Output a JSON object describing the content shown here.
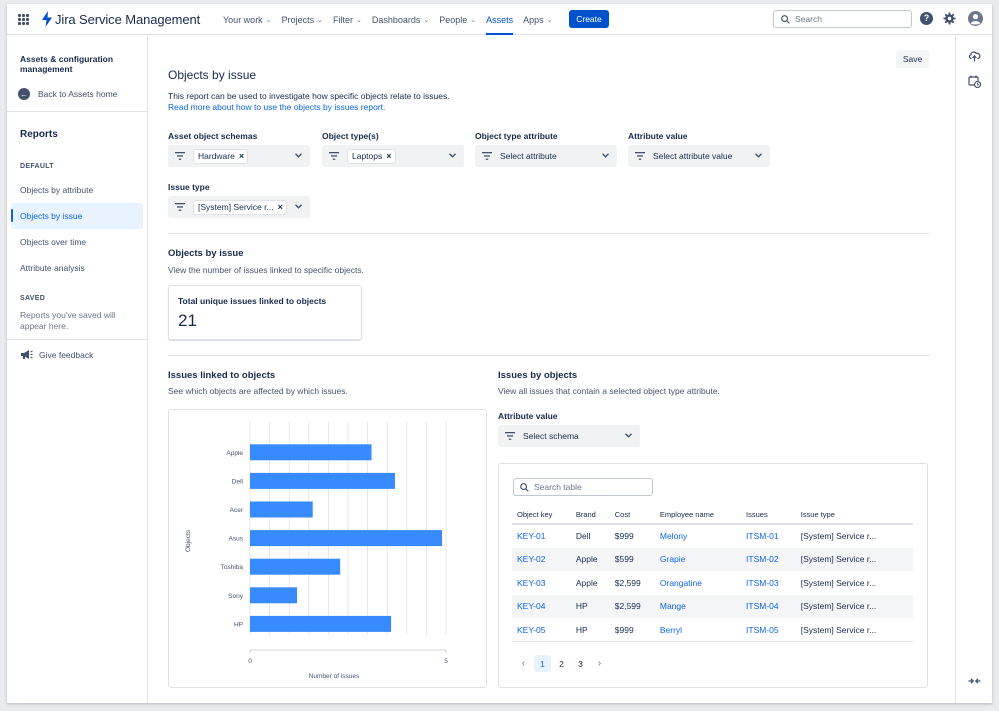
{
  "topbar": {
    "product_name": "Jira Service Management",
    "nav": [
      {
        "label": "Your work",
        "dropdown": true
      },
      {
        "label": "Projects",
        "dropdown": true
      },
      {
        "label": "Filter",
        "dropdown": true
      },
      {
        "label": "Dashboards",
        "dropdown": true
      },
      {
        "label": "People",
        "dropdown": true
      },
      {
        "label": "Assets",
        "dropdown": false,
        "active": true
      },
      {
        "label": "Apps",
        "dropdown": true
      }
    ],
    "create_label": "Create",
    "search_placeholder": "Search",
    "help_glyph": "?"
  },
  "sidebar": {
    "title": "Assets & configuration management",
    "back_label": "Back to Assets home",
    "section": "Reports",
    "default_header": "DEFAULT",
    "items": [
      "Objects by attribute",
      "Objects by issue",
      "Objects over time",
      "Attribute analysis"
    ],
    "selected_index": 1,
    "saved_header": "SAVED",
    "saved_note": "Reports you've saved will appear here.",
    "feedback_label": "Give feedback"
  },
  "main": {
    "save_label": "Save",
    "title": "Objects by issue",
    "description": "This report can be used to investigate how specific objects relate to issues.",
    "read_more": "Read more about how to use the objects by issues report.",
    "filters": {
      "schemas_label": "Asset object schemas",
      "schemas_value": "Hardware",
      "types_label": "Object type(s)",
      "types_value": "Laptops",
      "type_attr_label": "Object type attribute",
      "type_attr_placeholder": "Select attribute",
      "attr_value_label": "Attribute value",
      "attr_value_placeholder": "Select attribute value",
      "issue_type_label": "Issue type",
      "issue_type_value": "[System] Service r..."
    },
    "summary": {
      "title": "Objects by issue",
      "subtitle": "View the number of issues linked to specific objects.",
      "card_label": "Total unique issues linked to objects",
      "card_value": "21"
    },
    "linked": {
      "title": "Issues linked to objects",
      "subtitle": "See which objects are affected by which issues."
    },
    "by_objects": {
      "title": "Issues by objects",
      "subtitle": "View all issues that contain a selected object type attribute.",
      "attr_label": "Attribute value",
      "schema_placeholder": "Select schema",
      "table_search_placeholder": "Search table"
    }
  },
  "chart_data": {
    "type": "bar",
    "orientation": "horizontal",
    "categories": [
      "Apple",
      "Dell",
      "Acer",
      "Asus",
      "Toshiba",
      "Sony",
      "HP"
    ],
    "values": [
      3.1,
      3.7,
      1.6,
      4.9,
      2.3,
      1.2,
      3.6
    ],
    "xlabel": "Number of issues",
    "ylabel": "Objects",
    "xlim": [
      0,
      5
    ],
    "xticks": [
      "0",
      "5"
    ],
    "bar_color": "#388bff",
    "grid": true
  },
  "table": {
    "headers": [
      "Object key",
      "Brand",
      "Cost",
      "Employee name",
      "Issues",
      "Issue type"
    ],
    "rows": [
      [
        "KEY-01",
        "Dell",
        "$999",
        "Melony",
        "ITSM-01",
        "[System] Service r..."
      ],
      [
        "KEY-02",
        "Apple",
        "$599",
        "Grapie",
        "ITSM-02",
        "[System] Service r..."
      ],
      [
        "KEY-03",
        "Apple",
        "$2,599",
        "Orangatine",
        "ITSM-03",
        "[System] Service r..."
      ],
      [
        "KEY-04",
        "HP",
        "$2,599",
        "Mange",
        "ITSM-04",
        "[System] Service r..."
      ],
      [
        "KEY-05",
        "HP",
        "$999",
        "Berryl",
        "ITSM-05",
        "[System] Service r..."
      ]
    ],
    "link_columns": [
      0,
      3,
      4
    ],
    "pages": [
      "1",
      "2",
      "3"
    ],
    "current_page": "1"
  },
  "colors": {
    "accent": "#0052cc",
    "link": "#0c66e4",
    "bar": "#388bff"
  }
}
